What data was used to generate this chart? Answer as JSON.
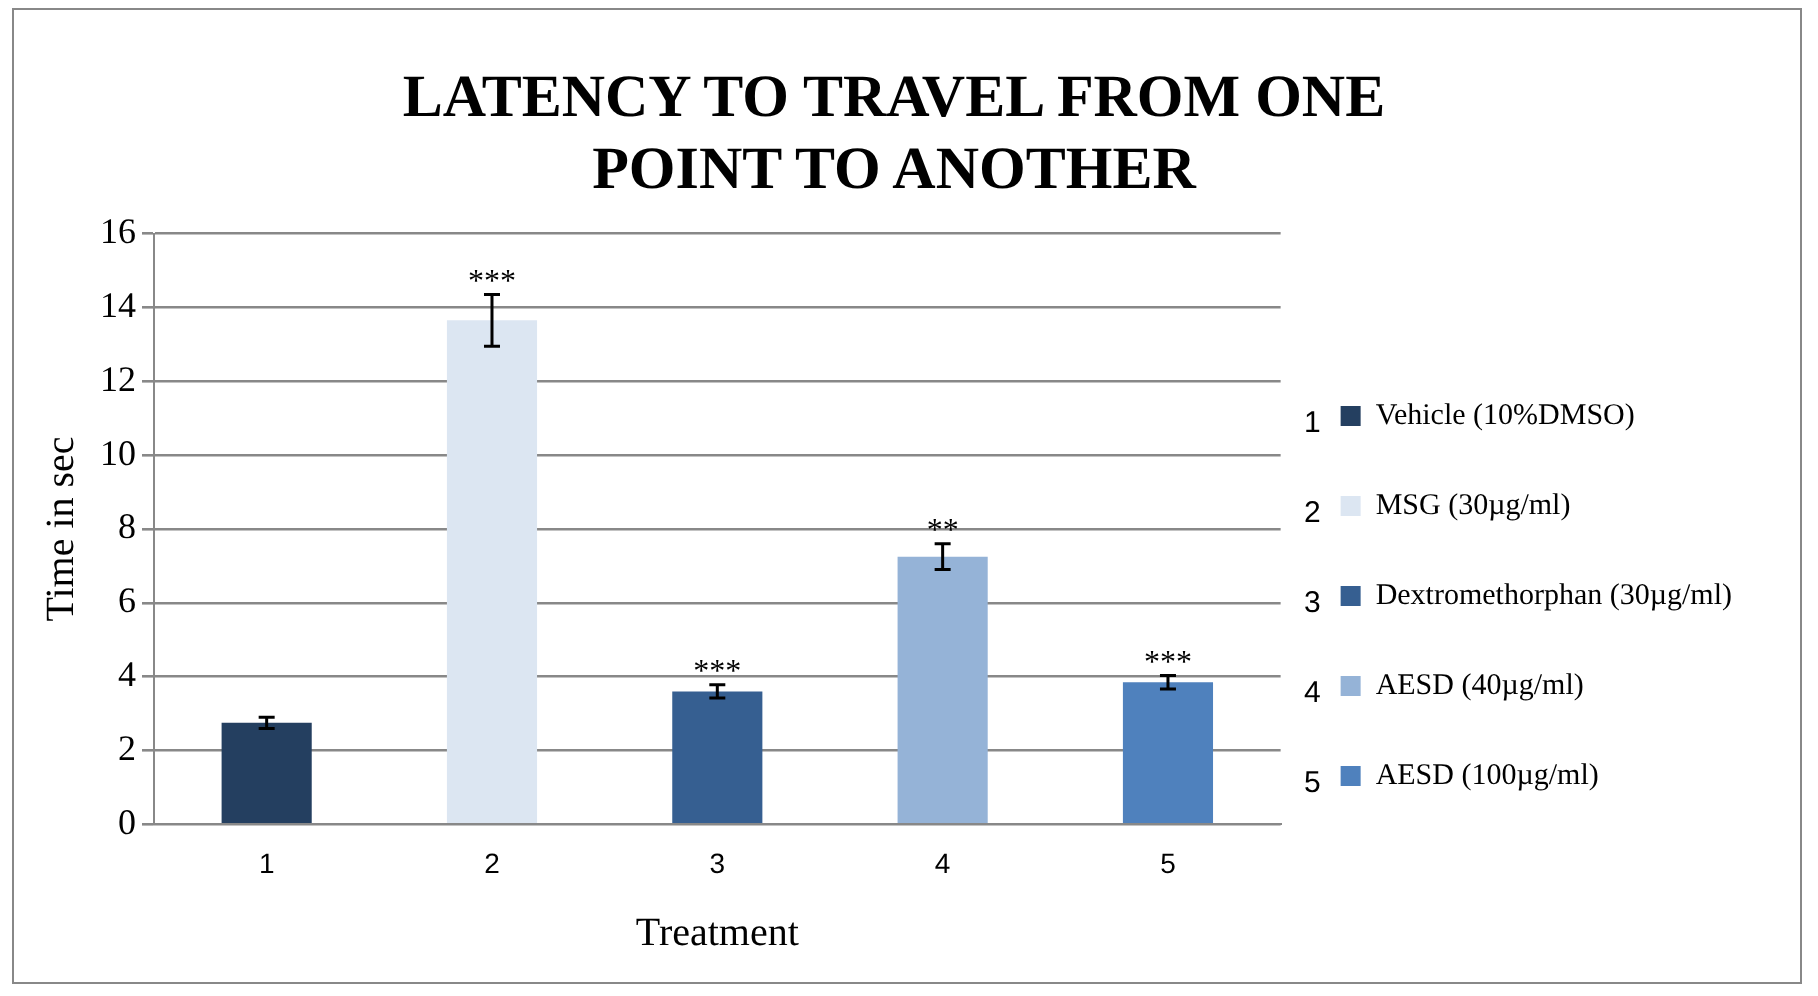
{
  "chart_data": {
    "type": "bar",
    "title": "LATENCY TO TRAVEL FROM ONE POINT TO ANOTHER",
    "xlabel": "Treatment",
    "ylabel": "Time in sec",
    "categories": [
      "1",
      "2",
      "3",
      "4",
      "5"
    ],
    "series": [
      {
        "name": "Vehicle (10%DMSO)",
        "color": "#243f60",
        "values": [
          2.75,
          null,
          null,
          null,
          null
        ],
        "errors": [
          0.15,
          null,
          null,
          null,
          null
        ]
      },
      {
        "name": "MSG (30µg/ml)",
        "color": "#dce6f2",
        "values": [
          null,
          13.65,
          null,
          null,
          null
        ],
        "errors": [
          null,
          0.7,
          null,
          null,
          null
        ]
      },
      {
        "name": "Dextromethorphan (30µg/ml)",
        "color": "#365f91",
        "values": [
          null,
          null,
          3.6,
          null,
          null
        ],
        "errors": [
          null,
          null,
          0.18,
          null,
          null
        ]
      },
      {
        "name": "AESD (40µg/ml)",
        "color": "#95b3d7",
        "values": [
          null,
          null,
          null,
          7.25,
          null
        ],
        "errors": [
          null,
          null,
          null,
          0.35,
          null
        ]
      },
      {
        "name": "AESD (100µg/ml)",
        "color": "#4f81bd",
        "values": [
          null,
          null,
          null,
          null,
          3.85
        ],
        "errors": [
          null,
          null,
          null,
          null,
          0.18
        ]
      }
    ],
    "ylim": [
      0,
      16
    ],
    "yticks": [
      0,
      2,
      4,
      6,
      8,
      10,
      12,
      14,
      16
    ],
    "grid": "y",
    "legend": "right",
    "annotations": [
      {
        "text": "***",
        "x": "2",
        "y": 14.35
      },
      {
        "text": "***",
        "x": "3",
        "y": 3.78
      },
      {
        "text": "**",
        "x": "4",
        "y": 7.6
      },
      {
        "text": "***",
        "x": "5",
        "y": 4.03
      },
      "1",
      "2",
      "3",
      "4",
      "5"
    ]
  }
}
